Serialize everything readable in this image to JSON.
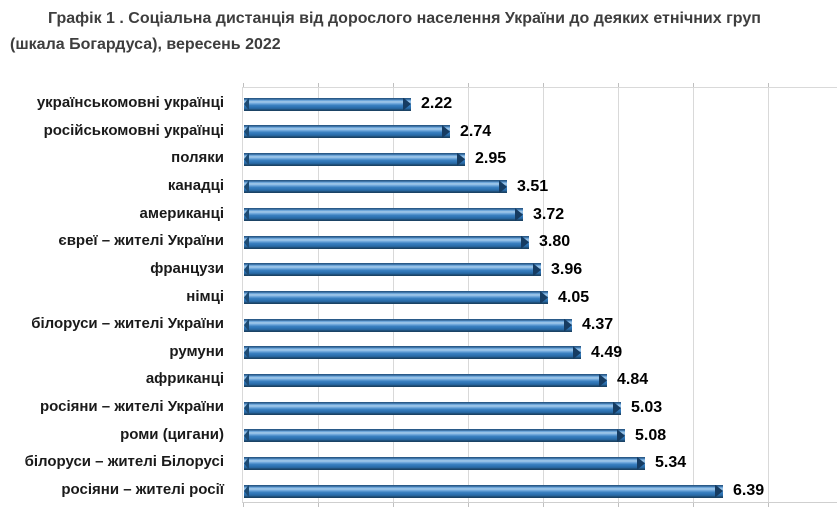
{
  "title": {
    "line1": "Графік 1 . Соціальна дистанція від дорослого населення України до деяких етнічних груп",
    "line2": "(шкала Богардуса), вересень 2022"
  },
  "chart_data": {
    "type": "bar",
    "orientation": "horizontal",
    "title": "Графік 1 . Соціальна дистанція від дорослого населення України до деяких етнічних груп (шкала Богардуса), вересень 2022",
    "categories": [
      "українськомовні українці",
      "російськомовні українці",
      "поляки",
      "канадці",
      "американці",
      "євреї – жителі України",
      "французи",
      "німці",
      "білоруси – жителі України",
      "румуни",
      "африканці",
      "росіяни – жителі України",
      "роми (цигани)",
      "білоруси – жителі Білорусі",
      "росіяни – жителі росії"
    ],
    "values": [
      2.22,
      2.74,
      2.95,
      3.51,
      3.72,
      3.8,
      3.96,
      4.05,
      4.37,
      4.49,
      4.84,
      5.03,
      5.08,
      5.34,
      6.39
    ],
    "value_labels": [
      "2.22",
      "2.74",
      "2.95",
      "3.51",
      "3.72",
      "3.80",
      "3.96",
      "4.05",
      "4.37",
      "4.49",
      "4.84",
      "5.03",
      "5.08",
      "5.34",
      "6.39"
    ],
    "xlabel": "",
    "ylabel": "",
    "xlim": [
      0,
      8
    ],
    "grid_interval": 1,
    "grid": true,
    "legend": false,
    "data_labels": true,
    "bar_color": "#2E75B6",
    "bar_highlight": "#A8CDEC",
    "bar_edge_dark": "#163C62",
    "gridline_color": "#D9D9D9",
    "axis_tick_color": "#BFBFBF",
    "data_label_color": "#000000",
    "category_label_color": "#1A1A1A",
    "title_color": "#3E3E3E"
  }
}
